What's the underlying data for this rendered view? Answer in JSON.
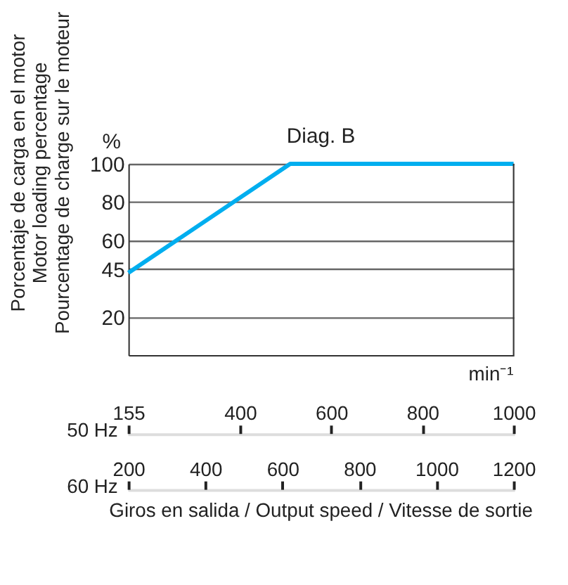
{
  "chart_data": {
    "type": "line",
    "title": "Diag. B",
    "xlabel": "Giros en salida / Output speed / Vitesse de sortie",
    "ylabel": [
      "Porcentaje de carga en el motor",
      "Motor loading percentage",
      "Pourcentage de charge sur le moteur"
    ],
    "x": [
      155,
      510,
      1000
    ],
    "series": [
      {
        "color": "#00aeef",
        "values": [
          43,
          100,
          100
        ]
      }
    ],
    "xlim": [
      155,
      1000
    ],
    "xticks": [
      155,
      400,
      600,
      800,
      1000
    ],
    "x2lim": [
      200,
      1200
    ],
    "x2ticks": [
      200,
      400,
      600,
      800,
      1000,
      1200
    ],
    "ylim": [
      0,
      100
    ],
    "yticks": [
      20,
      45,
      60,
      80,
      100
    ],
    "grid": "y",
    "marker": "none",
    "line_style": "solid",
    "annotations": [
      "%",
      "min⁻¹",
      "50 Hz",
      "60 Hz"
    ]
  }
}
